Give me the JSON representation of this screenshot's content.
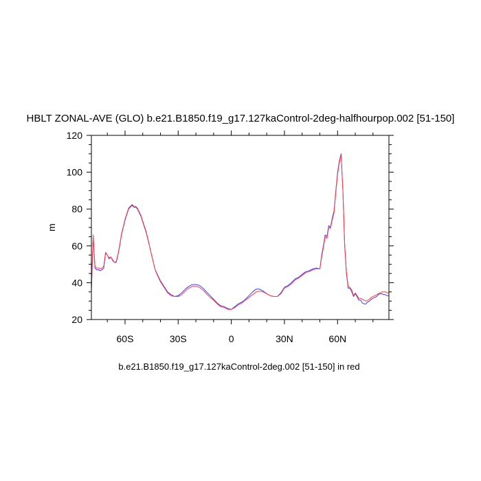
{
  "chart_data": {
    "type": "line",
    "title": "HBLT ZONAL-AVE (GLO) b.e21.B1850.f19_g17.127kaControl-2deg-halfhourpop.002 [51-150]",
    "subtitle": "b.e21.B1850.f19_g17.127kaControl-2deg.002 [51-150] in red",
    "ylabel": "m",
    "xlim": [
      -79,
      89
    ],
    "ylim": [
      20,
      120
    ],
    "y_major_ticks": [
      20,
      40,
      60,
      80,
      100,
      120
    ],
    "y_tick_labels": [
      "20",
      "40",
      "60",
      "80",
      "100",
      "120"
    ],
    "x_major_ticks": [
      -60,
      -30,
      0,
      30,
      60
    ],
    "x_tick_labels": [
      "60S",
      "30S",
      "0",
      "30N",
      "60N"
    ],
    "colors": {
      "series_blue": "#3c3cff",
      "series_red": "#ff3c3c"
    },
    "series": [
      {
        "color": "series_blue",
        "x": [
          -79,
          -78,
          -77,
          -76,
          -75,
          -74,
          -73,
          -72,
          -71,
          -70,
          -69,
          -68,
          -67,
          -66,
          -65,
          -64,
          -63,
          -62,
          -61,
          -60,
          -59,
          -58,
          -57,
          -56,
          -55,
          -54,
          -53,
          -52,
          -51,
          -50,
          -49,
          -48,
          -47,
          -46,
          -45,
          -44,
          -43,
          -42,
          -41,
          -40,
          -38,
          -36,
          -34,
          -32,
          -30,
          -28,
          -26,
          -24,
          -22,
          -20,
          -18,
          -16,
          -14,
          -12,
          -10,
          -8,
          -6,
          -4,
          -2,
          0,
          2,
          4,
          6,
          8,
          10,
          12,
          14,
          16,
          18,
          20,
          22,
          24,
          26,
          28,
          30,
          32,
          34,
          36,
          38,
          40,
          42,
          44,
          46,
          48,
          50,
          51,
          52,
          53,
          54,
          55,
          56,
          57,
          58,
          59,
          60,
          61,
          62,
          63,
          64,
          65,
          66,
          67,
          68,
          69,
          70,
          71,
          72,
          73,
          74,
          75,
          76,
          77,
          78,
          79,
          80,
          81,
          82,
          83,
          84,
          85,
          86,
          87,
          88,
          89
        ],
        "y": [
          35,
          65,
          48,
          47,
          47,
          46.5,
          47,
          48,
          56,
          55,
          53,
          54,
          52,
          51,
          51,
          55,
          60,
          66,
          70,
          74,
          77,
          80,
          81,
          82,
          81,
          81,
          80,
          78,
          76,
          73,
          70,
          67,
          63,
          59,
          55,
          51,
          47,
          45,
          43,
          41,
          38,
          35,
          33.5,
          32.5,
          33,
          34.5,
          36.5,
          38,
          39,
          39,
          38.5,
          37,
          35,
          33,
          31,
          29,
          27.5,
          27,
          26,
          25.5,
          27,
          28.5,
          29.5,
          31,
          33,
          35,
          36.5,
          36.5,
          35.5,
          34,
          33,
          32.5,
          32.5,
          34.5,
          37.5,
          38.5,
          40,
          42,
          43,
          44.5,
          46,
          46.5,
          47.5,
          48,
          47.5,
          55,
          60,
          66,
          65,
          71,
          70,
          75,
          79,
          90,
          100,
          106,
          110,
          90,
          60,
          45,
          37,
          37,
          35,
          32.5,
          34,
          32.5,
          30.5,
          30.5,
          29,
          28.5,
          28.5,
          29.5,
          30,
          31,
          31.5,
          32,
          32.5,
          33.5,
          34,
          34,
          33.5,
          33.5,
          33,
          33
        ]
      },
      {
        "color": "series_red",
        "x": [
          -79,
          -78,
          -77,
          -76,
          -75,
          -74,
          -73,
          -72,
          -71,
          -70,
          -69,
          -68,
          -67,
          -66,
          -65,
          -64,
          -63,
          -62,
          -61,
          -60,
          -59,
          -58,
          -57,
          -56,
          -55,
          -54,
          -53,
          -52,
          -51,
          -50,
          -49,
          -48,
          -47,
          -46,
          -45,
          -44,
          -43,
          -42,
          -41,
          -40,
          -38,
          -36,
          -34,
          -32,
          -30,
          -28,
          -26,
          -24,
          -22,
          -20,
          -18,
          -16,
          -14,
          -12,
          -10,
          -8,
          -6,
          -4,
          -2,
          0,
          2,
          4,
          6,
          8,
          10,
          12,
          14,
          16,
          18,
          20,
          22,
          24,
          26,
          28,
          30,
          32,
          34,
          36,
          38,
          40,
          42,
          44,
          46,
          48,
          50,
          51,
          52,
          53,
          54,
          55,
          56,
          57,
          58,
          59,
          60,
          61,
          62,
          63,
          64,
          65,
          66,
          67,
          68,
          69,
          70,
          71,
          72,
          73,
          74,
          75,
          76,
          77,
          78,
          79,
          80,
          81,
          82,
          83,
          84,
          85,
          86,
          87,
          88,
          89
        ],
        "y": [
          36,
          66,
          49,
          48,
          48,
          47.5,
          48,
          49,
          56.5,
          55,
          53.5,
          54,
          52.5,
          51,
          51.5,
          55.5,
          60.5,
          66.5,
          70.5,
          74.5,
          77.5,
          80.5,
          81.5,
          82.5,
          81.5,
          81.5,
          80.5,
          78.5,
          76.5,
          73.5,
          70.5,
          67.5,
          63.5,
          59,
          55,
          51,
          47,
          44.5,
          42.5,
          40.5,
          37.5,
          34.5,
          33,
          32.5,
          32.5,
          33.5,
          35.5,
          37,
          38,
          38,
          37.5,
          36,
          34,
          32,
          30.5,
          28.5,
          27,
          26.5,
          25.5,
          25.5,
          26.5,
          28,
          29,
          30.5,
          32,
          33.5,
          35,
          35.5,
          35,
          34,
          33,
          32.5,
          32.5,
          34,
          37,
          38,
          39.5,
          41.5,
          42.5,
          44,
          45.5,
          46,
          47,
          47.5,
          47.5,
          54,
          59,
          65,
          64,
          70,
          69.5,
          74,
          78,
          89,
          99,
          105,
          109.5,
          90,
          61,
          46,
          38,
          37.5,
          36,
          33,
          34.5,
          33,
          31.5,
          31.5,
          31,
          30.5,
          30,
          30.5,
          31,
          32,
          32.5,
          33,
          33.5,
          34,
          34.5,
          35,
          35,
          35,
          34.5,
          34.5
        ]
      }
    ]
  }
}
